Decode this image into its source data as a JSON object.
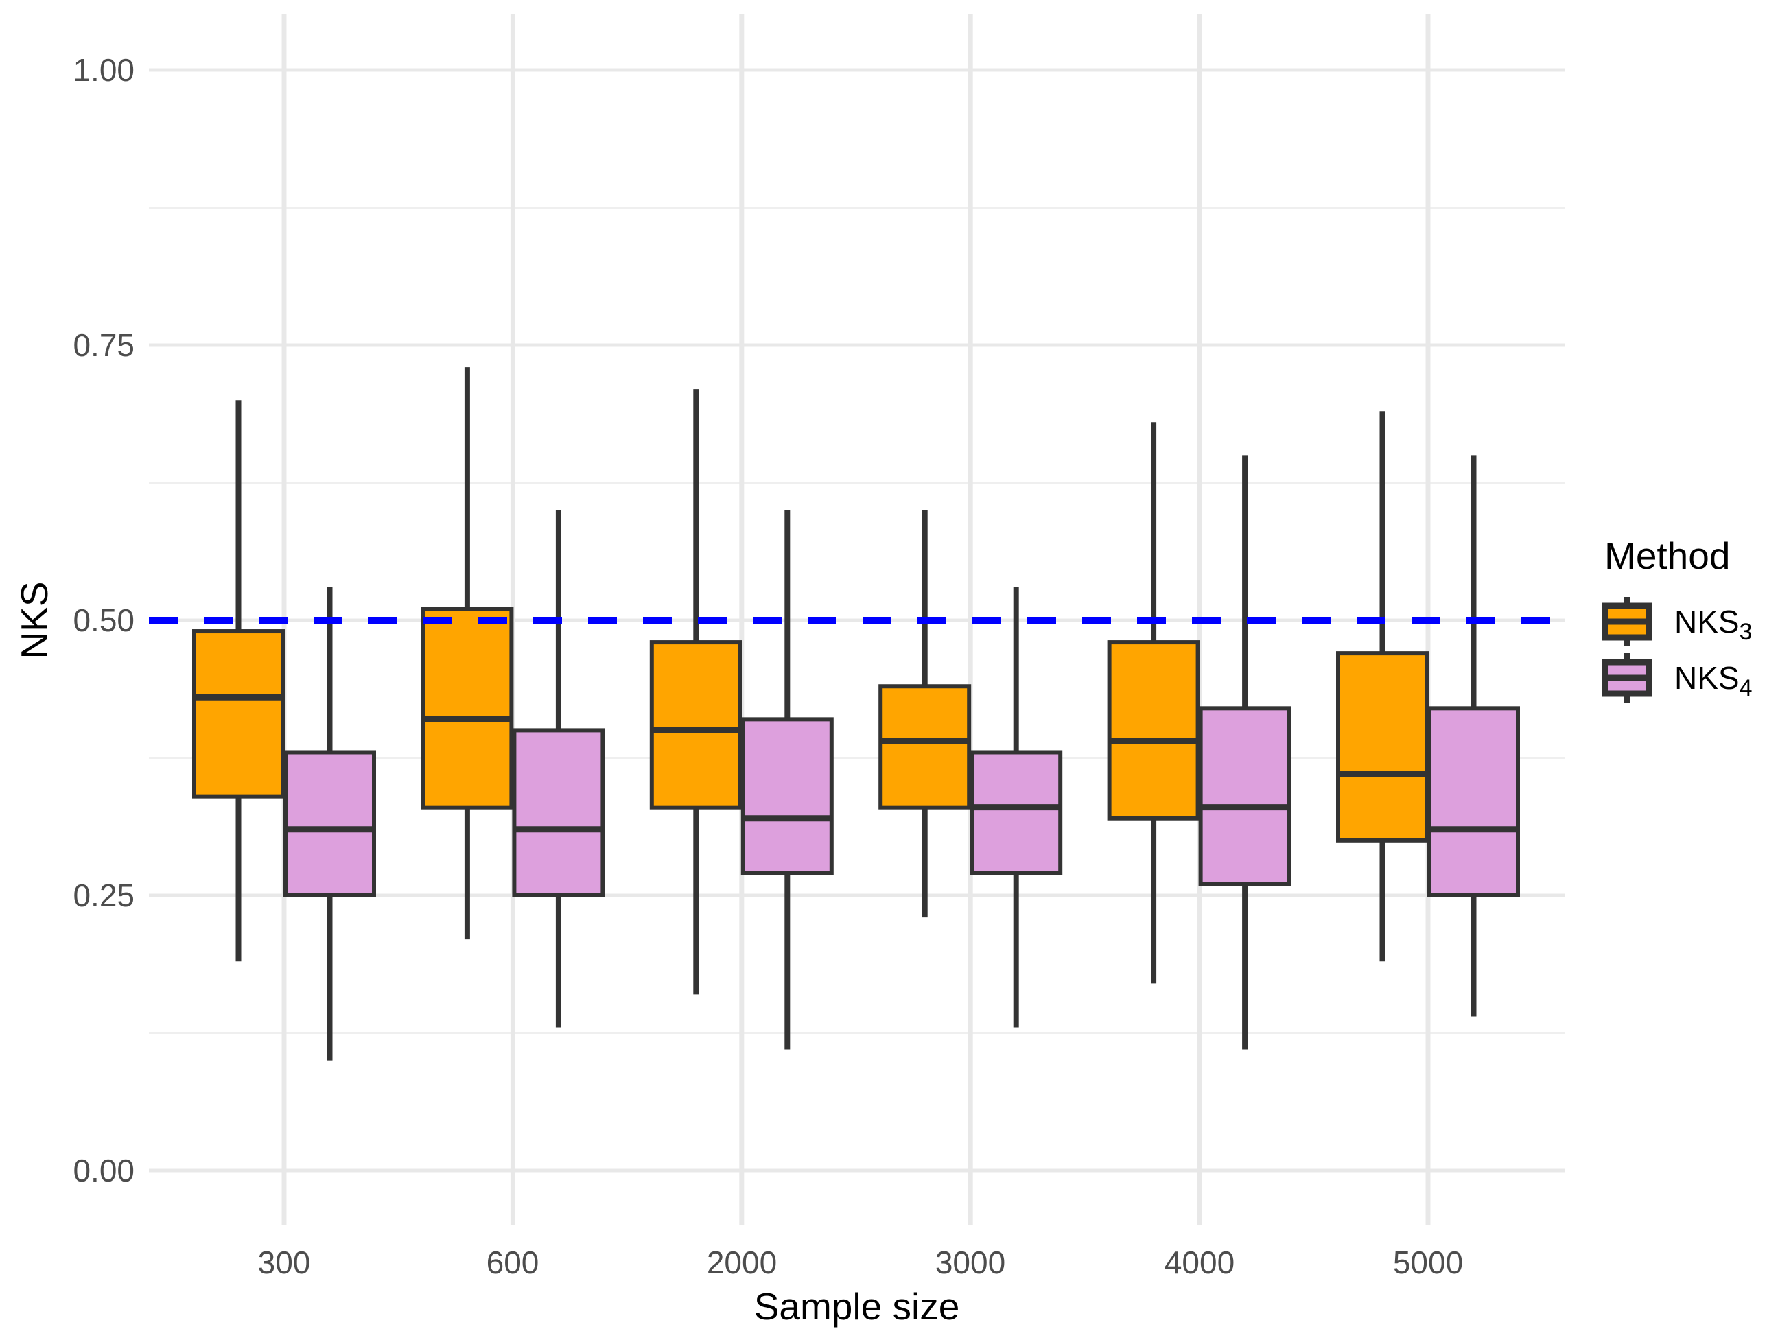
{
  "chart_data": {
    "type": "boxplot",
    "title": "",
    "xlabel": "Sample size",
    "ylabel": "NKS",
    "categories": [
      "300",
      "600",
      "2000",
      "3000",
      "4000",
      "5000"
    ],
    "y_ticks": [
      "1.00",
      "0.75",
      "0.50",
      "0.25",
      "0.00"
    ],
    "y_tick_values": [
      1.0,
      0.75,
      0.5,
      0.25,
      0.0
    ],
    "y_minor_values": [
      0.875,
      0.625,
      0.375,
      0.125
    ],
    "ylim": [
      0,
      1
    ],
    "grid": true,
    "legend": {
      "title": "Method",
      "position": "right",
      "entries": [
        {
          "label": "NKS",
          "subscript": "3",
          "color": "#FFA500"
        },
        {
          "label": "NKS",
          "subscript": "4",
          "color": "#DDA0DD"
        }
      ]
    },
    "reference_line": {
      "value": 0.5,
      "color": "#0000FF",
      "style": "dashed"
    },
    "box_border_color": "#333333",
    "series": [
      {
        "name": "NKS3",
        "fill": "#FFA500",
        "boxes": [
          {
            "category": "300",
            "min": 0.19,
            "q1": 0.34,
            "median": 0.43,
            "q3": 0.49,
            "max": 0.7
          },
          {
            "category": "600",
            "min": 0.21,
            "q1": 0.33,
            "median": 0.41,
            "q3": 0.51,
            "max": 0.73
          },
          {
            "category": "2000",
            "min": 0.16,
            "q1": 0.33,
            "median": 0.4,
            "q3": 0.48,
            "max": 0.71
          },
          {
            "category": "3000",
            "min": 0.23,
            "q1": 0.33,
            "median": 0.39,
            "q3": 0.44,
            "max": 0.6
          },
          {
            "category": "4000",
            "min": 0.17,
            "q1": 0.32,
            "median": 0.39,
            "q3": 0.48,
            "max": 0.68
          },
          {
            "category": "5000",
            "min": 0.19,
            "q1": 0.3,
            "median": 0.36,
            "q3": 0.47,
            "max": 0.69
          }
        ]
      },
      {
        "name": "NKS4",
        "fill": "#DDA0DD",
        "boxes": [
          {
            "category": "300",
            "min": 0.1,
            "q1": 0.25,
            "median": 0.31,
            "q3": 0.38,
            "max": 0.53
          },
          {
            "category": "600",
            "min": 0.13,
            "q1": 0.25,
            "median": 0.31,
            "q3": 0.4,
            "max": 0.6
          },
          {
            "category": "2000",
            "min": 0.11,
            "q1": 0.27,
            "median": 0.32,
            "q3": 0.41,
            "max": 0.6
          },
          {
            "category": "3000",
            "min": 0.13,
            "q1": 0.27,
            "median": 0.33,
            "q3": 0.38,
            "max": 0.53
          },
          {
            "category": "4000",
            "min": 0.11,
            "q1": 0.26,
            "median": 0.33,
            "q3": 0.42,
            "max": 0.65
          },
          {
            "category": "5000",
            "min": 0.14,
            "q1": 0.25,
            "median": 0.31,
            "q3": 0.42,
            "max": 0.65
          }
        ]
      }
    ]
  }
}
